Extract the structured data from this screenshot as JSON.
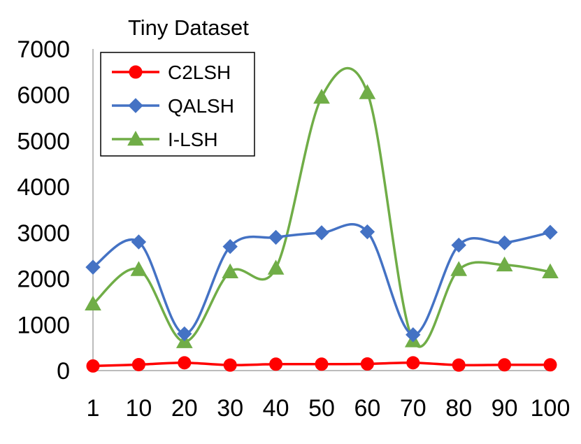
{
  "chart_data": {
    "type": "line",
    "title": "Tiny Dataset",
    "xlabel": "",
    "ylabel": "",
    "categories": [
      "1",
      "10",
      "20",
      "30",
      "40",
      "50",
      "60",
      "70",
      "80",
      "90",
      "100"
    ],
    "ylim": [
      0,
      7000
    ],
    "yticks": [
      "0",
      "1000",
      "2000",
      "3000",
      "4000",
      "5000",
      "6000",
      "7000"
    ],
    "grid": false,
    "smooth": true,
    "legend_position": "top-left",
    "series": [
      {
        "name": "C2LSH",
        "color": "#ff0000",
        "marker": "circle",
        "values": [
          100,
          130,
          170,
          120,
          140,
          140,
          145,
          170,
          120,
          125,
          125
        ]
      },
      {
        "name": "QALSH",
        "color": "#4472c4",
        "marker": "diamond",
        "values": [
          2250,
          2800,
          800,
          2700,
          2900,
          3000,
          3020,
          780,
          2730,
          2780,
          3010
        ]
      },
      {
        "name": "I-LSH",
        "color": "#70ad47",
        "marker": "triangle",
        "values": [
          1450,
          2200,
          630,
          2150,
          2230,
          5950,
          6050,
          650,
          2200,
          2300,
          2150
        ]
      }
    ]
  }
}
